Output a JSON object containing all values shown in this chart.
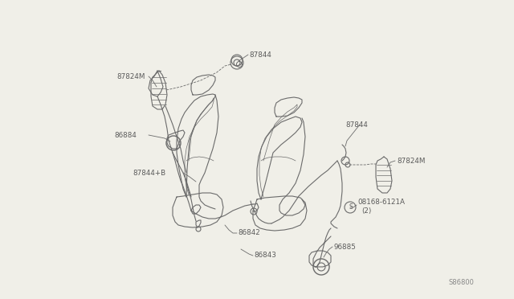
{
  "background_color": "#f0efe8",
  "line_color": "#6b6b6b",
  "text_color": "#5a5a5a",
  "watermark": "S86800",
  "fig_w": 6.4,
  "fig_h": 3.72,
  "dpi": 100,
  "xlim": [
    0,
    640
  ],
  "ylim": [
    0,
    372
  ]
}
